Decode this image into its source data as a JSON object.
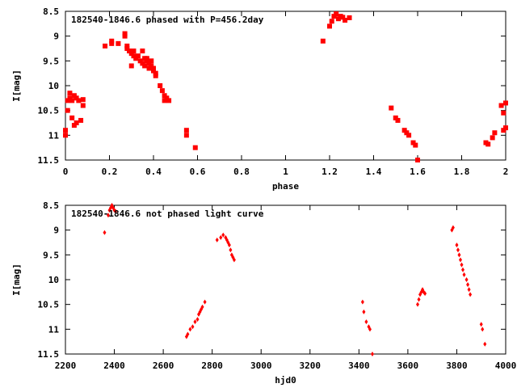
{
  "colors": {
    "points": "#ff0000",
    "axes": "#000000",
    "background": "#ffffff"
  },
  "chart_data": [
    {
      "type": "scatter",
      "title": "182540-1846.6 phased with P=456.2day",
      "xlabel": "phase",
      "ylabel": "I[mag]",
      "xlim": [
        0,
        2
      ],
      "ylim": [
        11.5,
        8.5
      ],
      "y_inverted": true,
      "grid": false,
      "x_ticks": [
        "0",
        "0.2",
        "0.4",
        "0.6",
        "0.8",
        "1",
        "1.2",
        "1.4",
        "1.6",
        "1.8",
        "2"
      ],
      "y_ticks": [
        "8.5",
        "9",
        "9.5",
        "10",
        "10.5",
        "11",
        "11.5"
      ],
      "marker": "filled-square",
      "series": [
        {
          "x": [
            0.0,
            0.0,
            0.01,
            0.01,
            0.02,
            0.02,
            0.03,
            0.03,
            0.04,
            0.04,
            0.05,
            0.05,
            0.06,
            0.07,
            0.08,
            0.08,
            0.18,
            0.21,
            0.21,
            0.24,
            0.27,
            0.27,
            0.28,
            0.28,
            0.29,
            0.3,
            0.3,
            0.31,
            0.31,
            0.32,
            0.33,
            0.34,
            0.35,
            0.35,
            0.36,
            0.36,
            0.37,
            0.37,
            0.38,
            0.38,
            0.39,
            0.39,
            0.4,
            0.4,
            0.41,
            0.41,
            0.43,
            0.44,
            0.45,
            0.45,
            0.46,
            0.47,
            0.55,
            0.55,
            0.59,
            1.17,
            1.2,
            1.21,
            1.22,
            1.23,
            1.24,
            1.25,
            1.26,
            1.27,
            1.29,
            1.48,
            1.5,
            1.51,
            1.54,
            1.55,
            1.56,
            1.58,
            1.59,
            1.6,
            1.91,
            1.92,
            1.94,
            1.95,
            1.98,
            1.99,
            1.99,
            2.0,
            2.0
          ],
          "y": [
            10.9,
            11.0,
            10.5,
            10.3,
            10.25,
            10.15,
            10.3,
            10.65,
            10.8,
            10.2,
            10.25,
            10.75,
            10.3,
            10.7,
            10.28,
            10.4,
            9.2,
            9.1,
            9.15,
            9.15,
            9.0,
            8.95,
            9.2,
            9.25,
            9.3,
            9.35,
            9.6,
            9.3,
            9.4,
            9.45,
            9.4,
            9.5,
            9.3,
            9.55,
            9.45,
            9.6,
            9.5,
            9.45,
            9.55,
            9.65,
            9.6,
            9.5,
            9.65,
            9.7,
            9.75,
            9.8,
            10.0,
            10.1,
            10.2,
            10.3,
            10.25,
            10.3,
            10.9,
            11.0,
            11.25,
            9.1,
            8.8,
            8.7,
            8.6,
            8.55,
            8.65,
            8.6,
            8.62,
            8.68,
            8.63,
            10.45,
            10.65,
            10.7,
            10.9,
            10.95,
            11.0,
            11.15,
            11.2,
            11.5,
            11.15,
            11.18,
            11.05,
            10.95,
            10.4,
            10.55,
            10.9,
            10.35,
            10.85
          ]
        }
      ]
    },
    {
      "type": "scatter",
      "title": "182540-1846.6 not phased light curve",
      "xlabel": "hjd0",
      "ylabel": "I[mag]",
      "xlim": [
        2200,
        4000
      ],
      "ylim": [
        11.5,
        8.5
      ],
      "y_inverted": true,
      "grid": false,
      "x_ticks": [
        "2200",
        "2400",
        "2600",
        "2800",
        "3000",
        "3200",
        "3400",
        "3600",
        "3800",
        "4000"
      ],
      "y_ticks": [
        "8.5",
        "9",
        "9.5",
        "10",
        "10.5",
        "11",
        "11.5"
      ],
      "marker": "filled-diamond",
      "series": [
        {
          "x": [
            2360,
            2375,
            2380,
            2385,
            2390,
            2395,
            2400,
            2405,
            2695,
            2700,
            2710,
            2720,
            2730,
            2740,
            2745,
            2750,
            2755,
            2760,
            2770,
            2820,
            2835,
            2845,
            2855,
            2860,
            2865,
            2870,
            2875,
            2880,
            2885,
            2890,
            3415,
            3420,
            3430,
            3440,
            3445,
            3455,
            3640,
            3645,
            3650,
            3655,
            3660,
            3665,
            3670,
            3780,
            3785,
            3800,
            3805,
            3810,
            3815,
            3820,
            3825,
            3830,
            3840,
            3845,
            3850,
            3855,
            3900,
            3905,
            3915
          ],
          "y": [
            9.05,
            8.7,
            8.6,
            8.55,
            8.5,
            8.55,
            8.6,
            8.62,
            11.15,
            11.1,
            11.0,
            10.95,
            10.85,
            10.8,
            10.7,
            10.65,
            10.6,
            10.55,
            10.45,
            9.2,
            9.15,
            9.1,
            9.15,
            9.2,
            9.25,
            9.3,
            9.4,
            9.5,
            9.55,
            9.6,
            10.45,
            10.65,
            10.85,
            10.95,
            11.0,
            11.5,
            10.5,
            10.4,
            10.3,
            10.25,
            10.2,
            10.25,
            10.28,
            9.0,
            8.95,
            9.3,
            9.4,
            9.5,
            9.6,
            9.7,
            9.8,
            9.9,
            10.0,
            10.1,
            10.2,
            10.3,
            10.9,
            11.0,
            11.3
          ]
        }
      ]
    }
  ]
}
